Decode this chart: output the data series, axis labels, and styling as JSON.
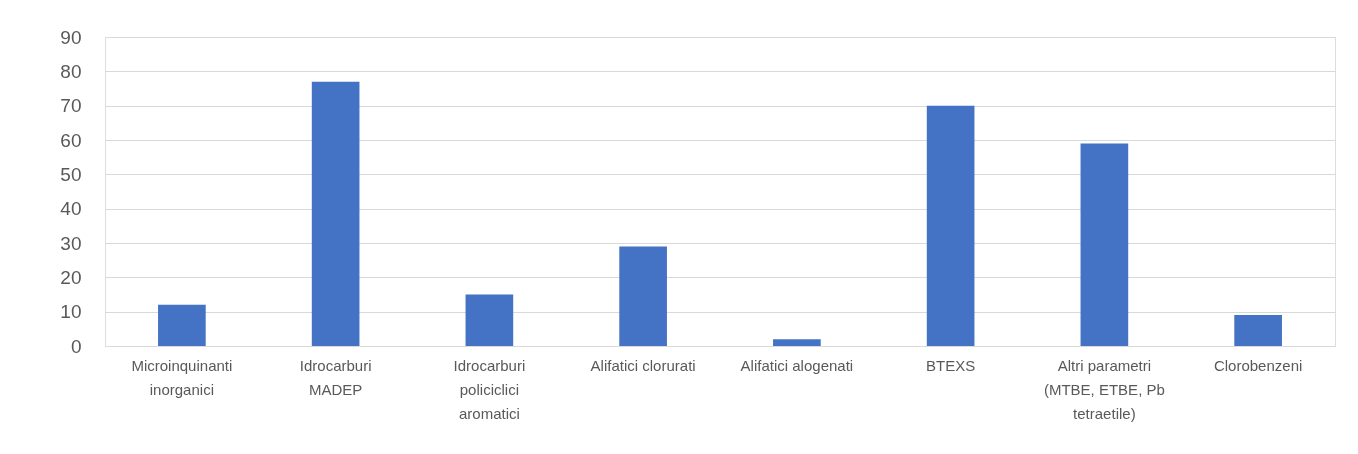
{
  "chart_data": {
    "type": "bar",
    "categories": [
      "Microinquinanti inorganici",
      "Idrocarburi MADEP",
      "Idrocarburi policiclici aromatici",
      "Alifatici clorurati",
      "Alifatici alogenati",
      "BTEXS",
      "Altri parametri (MTBE, ETBE, Pb tetraetile)",
      "Clorobenzeni"
    ],
    "values": [
      12,
      77,
      15,
      29,
      2,
      70,
      59,
      9
    ],
    "color": "#4472c4",
    "ylim": [
      0,
      90
    ],
    "yticks": [
      0,
      10,
      20,
      30,
      40,
      50,
      60,
      70,
      80,
      90
    ],
    "grid": "y"
  }
}
